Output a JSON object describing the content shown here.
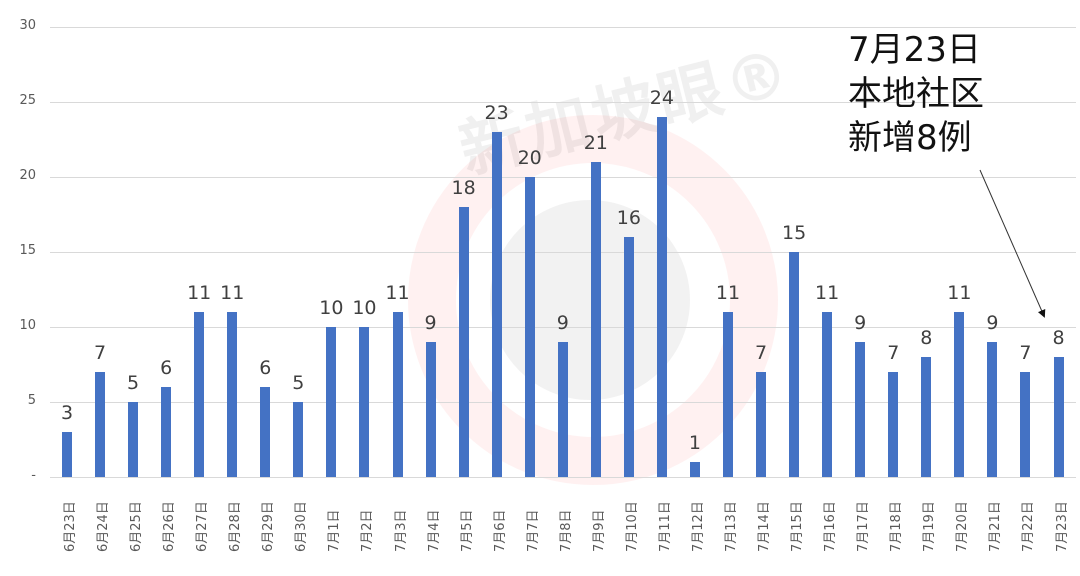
{
  "chart_data": {
    "type": "bar",
    "title": "",
    "xlabel": "",
    "ylabel": "",
    "ylim": [
      0,
      30
    ],
    "yticks": [
      "-",
      "5",
      "10",
      "15",
      "20",
      "25",
      "30"
    ],
    "grid": true,
    "legend": null,
    "categories": [
      "6月23日",
      "6月24日",
      "6月25日",
      "6月26日",
      "6月27日",
      "6月28日",
      "6月29日",
      "6月30日",
      "7月1日",
      "7月2日",
      "7月3日",
      "7月4日",
      "7月5日",
      "7月6日",
      "7月7日",
      "7月8日",
      "7月9日",
      "7月10日",
      "7月11日",
      "7月12日",
      "7月13日",
      "7月14日",
      "7月15日",
      "7月16日",
      "7月17日",
      "7月18日",
      "7月19日",
      "7月20日",
      "7月21日",
      "7月22日",
      "7月23日"
    ],
    "values": [
      3,
      7,
      5,
      6,
      11,
      11,
      6,
      5,
      10,
      10,
      11,
      9,
      18,
      23,
      20,
      9,
      21,
      16,
      24,
      1,
      11,
      7,
      15,
      11,
      9,
      7,
      8,
      11,
      9,
      7,
      8
    ],
    "bar_color": "#4472c4",
    "annotation": {
      "lines": [
        "7月23日",
        "本地社区",
        "新增8例"
      ],
      "points_to": "7月23日"
    }
  },
  "watermark": "新加坡眼®"
}
